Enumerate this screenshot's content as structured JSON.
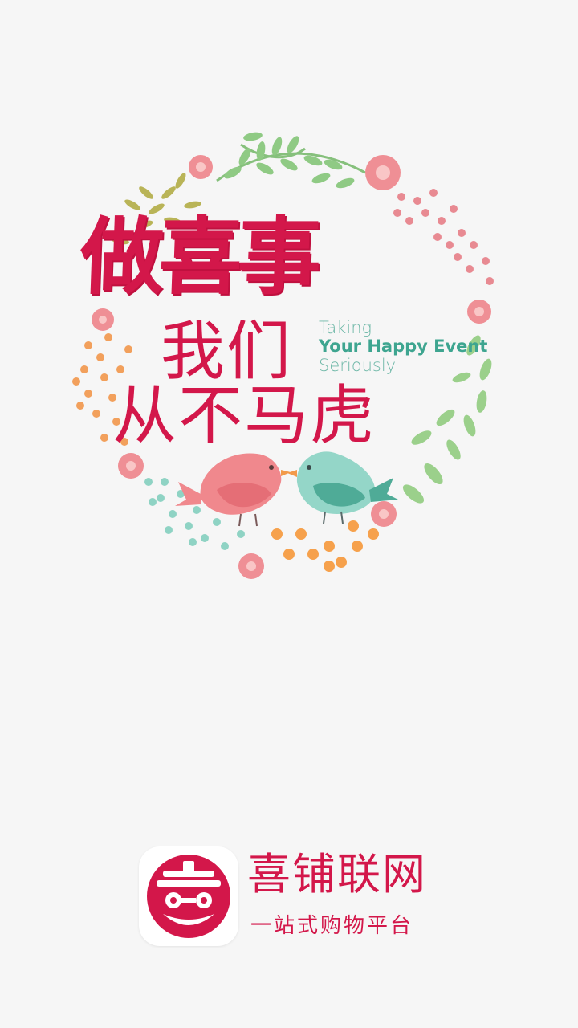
{
  "hero": {
    "headline": "做喜事",
    "line2": "我们",
    "line3": "从不马虎",
    "tagline_1": "Taking",
    "tagline_2": "Your Happy Event",
    "tagline_3": "Seriously"
  },
  "brand": {
    "name": "喜铺联网",
    "slogan": "一站式购物平台"
  },
  "colors": {
    "accent": "#d3174a",
    "teal": "#3ea590",
    "background": "#f6f6f6"
  }
}
